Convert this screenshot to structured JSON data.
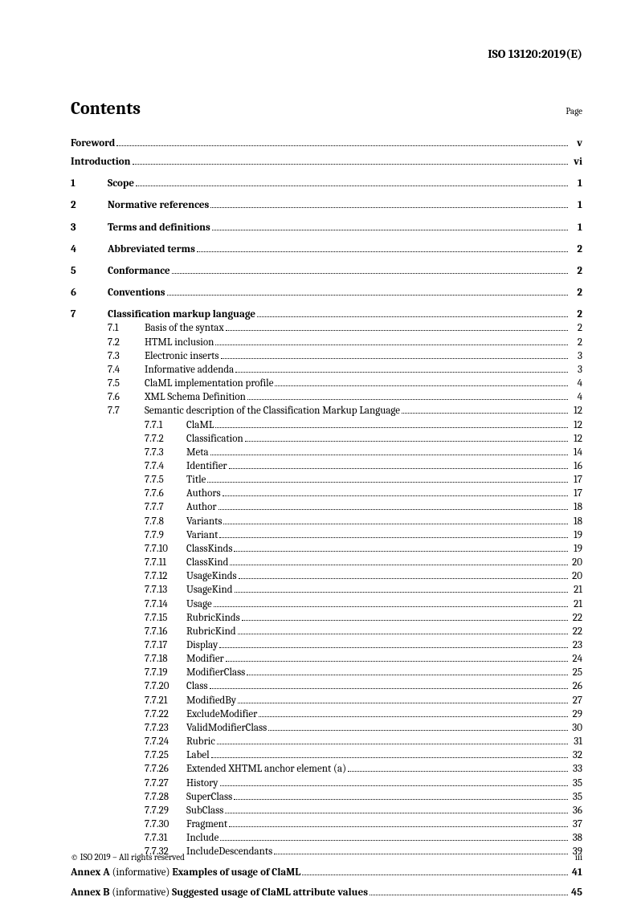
{
  "header": {
    "doc_id": "ISO 13120:2019(E)"
  },
  "contents": {
    "title": "Contents",
    "page_label": "Page"
  },
  "front_matter": [
    {
      "label": "Foreword",
      "page": "v"
    },
    {
      "label": "Introduction",
      "page": "vi"
    }
  ],
  "sections": [
    {
      "num": "1",
      "label": "Scope",
      "page": "1"
    },
    {
      "num": "2",
      "label": "Normative references",
      "page": "1"
    },
    {
      "num": "3",
      "label": "Terms and definitions",
      "page": "1"
    },
    {
      "num": "4",
      "label": "Abbreviated terms",
      "page": "2"
    },
    {
      "num": "5",
      "label": "Conformance",
      "page": "2"
    },
    {
      "num": "6",
      "label": "Conventions",
      "page": "2"
    },
    {
      "num": "7",
      "label": "Classification markup language",
      "page": "2",
      "subs": [
        {
          "num": "7.1",
          "label": "Basis of the syntax",
          "page": "2"
        },
        {
          "num": "7.2",
          "label": "HTML inclusion",
          "page": "2"
        },
        {
          "num": "7.3",
          "label": "Electronic inserts",
          "page": "3"
        },
        {
          "num": "7.4",
          "label": "Informative addenda",
          "page": "3"
        },
        {
          "num": "7.5",
          "label": "ClaML implementation profile",
          "page": "4"
        },
        {
          "num": "7.6",
          "label": "XML Schema Definition",
          "page": "4"
        },
        {
          "num": "7.7",
          "label": "Semantic description of the Classification Markup Language",
          "page": "12",
          "subs": [
            {
              "num": "7.7.1",
              "label": "ClaML",
              "page": "12"
            },
            {
              "num": "7.7.2",
              "label": "Classification",
              "page": "12"
            },
            {
              "num": "7.7.3",
              "label": "Meta",
              "page": "14"
            },
            {
              "num": "7.7.4",
              "label": "Identifier",
              "page": "16"
            },
            {
              "num": "7.7.5",
              "label": "Title",
              "page": "17"
            },
            {
              "num": "7.7.6",
              "label": "Authors",
              "page": "17"
            },
            {
              "num": "7.7.7",
              "label": "Author",
              "page": "18"
            },
            {
              "num": "7.7.8",
              "label": "Variants",
              "page": "18"
            },
            {
              "num": "7.7.9",
              "label": "Variant",
              "page": "19"
            },
            {
              "num": "7.7.10",
              "label": "ClassKinds",
              "page": "19"
            },
            {
              "num": "7.7.11",
              "label": "ClassKind",
              "page": "20"
            },
            {
              "num": "7.7.12",
              "label": "UsageKinds",
              "page": "20"
            },
            {
              "num": "7.7.13",
              "label": "UsageKind",
              "page": "21"
            },
            {
              "num": "7.7.14",
              "label": "Usage",
              "page": "21"
            },
            {
              "num": "7.7.15",
              "label": "RubricKinds",
              "page": "22"
            },
            {
              "num": "7.7.16",
              "label": "RubricKind",
              "page": "22"
            },
            {
              "num": "7.7.17",
              "label": "Display",
              "page": "23"
            },
            {
              "num": "7.7.18",
              "label": "Modifier",
              "page": "24"
            },
            {
              "num": "7.7.19",
              "label": "ModifierClass",
              "page": "25"
            },
            {
              "num": "7.7.20",
              "label": "Class",
              "page": "26"
            },
            {
              "num": "7.7.21",
              "label": "ModifiedBy",
              "page": "27"
            },
            {
              "num": "7.7.22",
              "label": "ExcludeModifier",
              "page": "29"
            },
            {
              "num": "7.7.23",
              "label": "ValidModifierClass",
              "page": "30"
            },
            {
              "num": "7.7.24",
              "label": "Rubric",
              "page": "31"
            },
            {
              "num": "7.7.25",
              "label": "Label",
              "page": "32"
            },
            {
              "num": "7.7.26",
              "label": "Extended XHTML anchor element (a)",
              "page": "33"
            },
            {
              "num": "7.7.27",
              "label": "History",
              "page": "35"
            },
            {
              "num": "7.7.28",
              "label": "SuperClass",
              "page": "35"
            },
            {
              "num": "7.7.29",
              "label": "SubClass",
              "page": "36"
            },
            {
              "num": "7.7.30",
              "label": "Fragment",
              "page": "37"
            },
            {
              "num": "7.7.31",
              "label": "Include",
              "page": "38"
            },
            {
              "num": "7.7.32",
              "label": "IncludeDescendants",
              "page": "39"
            }
          ]
        }
      ]
    }
  ],
  "annexes": [
    {
      "lead": "Annex A",
      "note": " (informative) ",
      "title": "Examples of usage of ClaML",
      "page": "41"
    },
    {
      "lead": "Annex B",
      "note": " (informative) ",
      "title": "Suggested usage of ClaML attribute values",
      "page": "45"
    }
  ],
  "footer": {
    "copyright": "© ISO 2019 – All rights reserved",
    "pagenum": "iii"
  }
}
